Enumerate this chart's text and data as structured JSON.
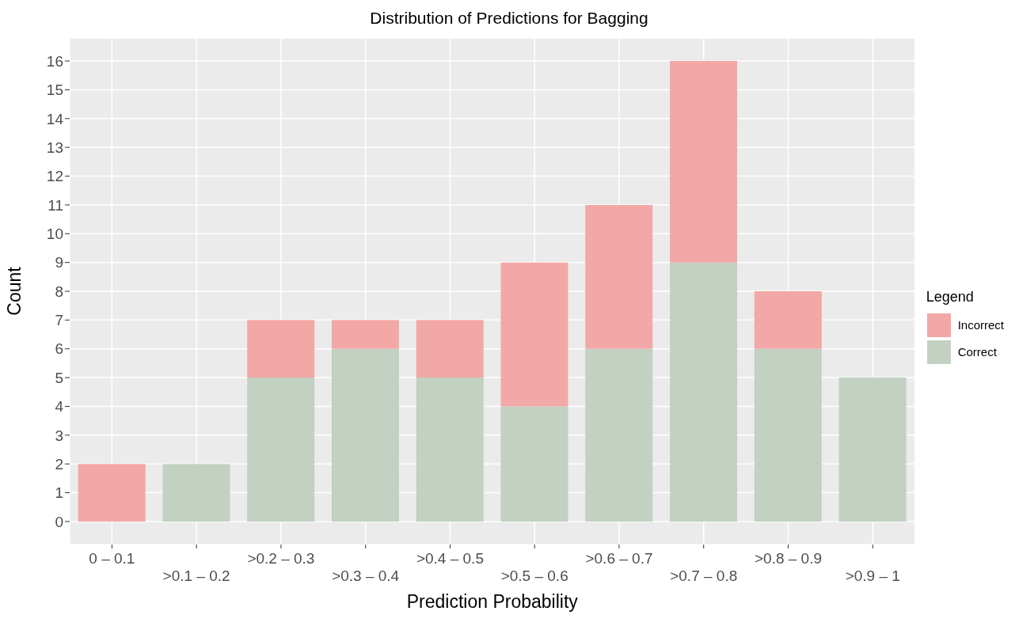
{
  "chart_data": {
    "type": "bar",
    "title": "Distribution of Predictions for Bagging",
    "xlabel": "Prediction Probability",
    "ylabel": "Count",
    "legend_title": "Legend",
    "categories": [
      "0 – 0.1",
      ">0.1 – 0.2",
      ">0.2 – 0.3",
      ">0.3 – 0.4",
      ">0.4 – 0.5",
      ">0.5 – 0.6",
      ">0.6 – 0.7",
      ">0.7 – 0.8",
      ">0.8 – 0.9",
      ">0.9 – 1"
    ],
    "stacked": true,
    "series": [
      {
        "name": "Correct",
        "color": "#c2d1c1",
        "values": [
          0,
          2,
          5,
          6,
          5,
          4,
          6,
          9,
          6,
          5
        ]
      },
      {
        "name": "Incorrect",
        "color": "#f2a8a6",
        "values": [
          2,
          0,
          2,
          1,
          2,
          5,
          5,
          7,
          2,
          0
        ]
      }
    ],
    "ylim": [
      -0.8,
      16.8
    ],
    "yticks": [
      0,
      1,
      2,
      3,
      4,
      5,
      6,
      7,
      8,
      9,
      10,
      11,
      12,
      13,
      14,
      15,
      16
    ],
    "grid": true,
    "legend": "right"
  }
}
